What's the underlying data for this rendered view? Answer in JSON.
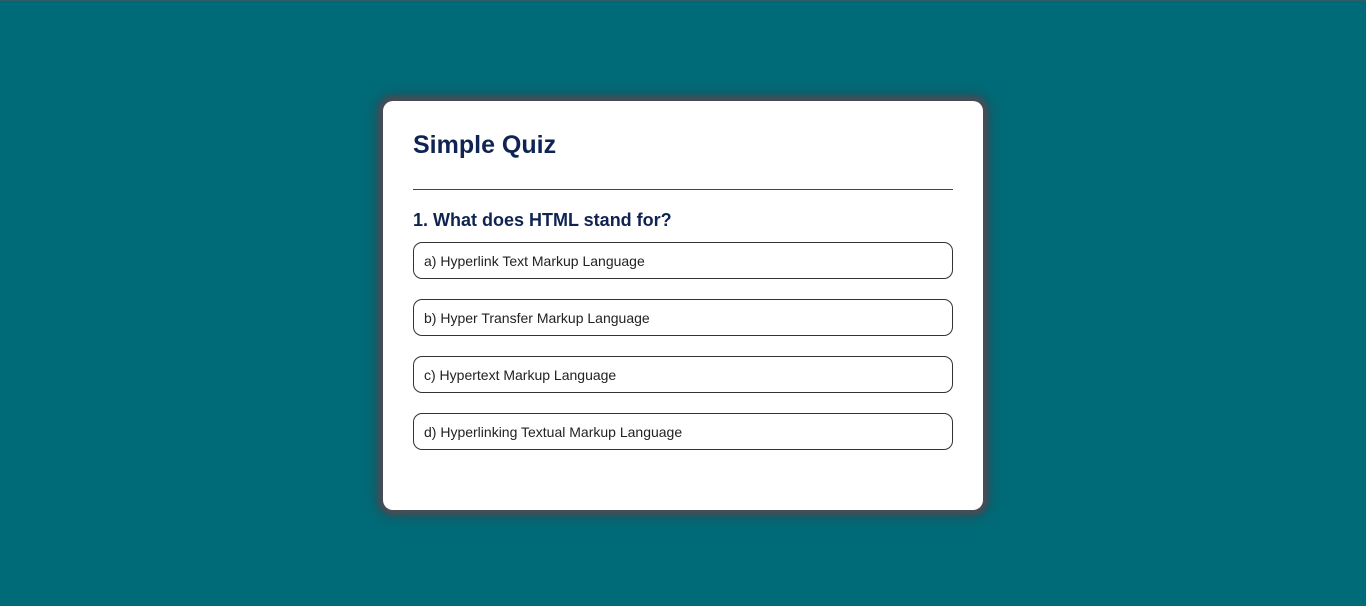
{
  "quiz": {
    "title": "Simple Quiz",
    "question": "1. What does HTML stand for?",
    "options": [
      "a) Hyperlink Text Markup Language",
      "b) Hyper Transfer Markup Language",
      "c) Hypertext Markup Language",
      "d) Hyperlinking Textual Markup Language"
    ]
  },
  "colors": {
    "background": "#006b78",
    "card": "#ffffff",
    "heading": "#0f2452",
    "border": "#333333"
  }
}
